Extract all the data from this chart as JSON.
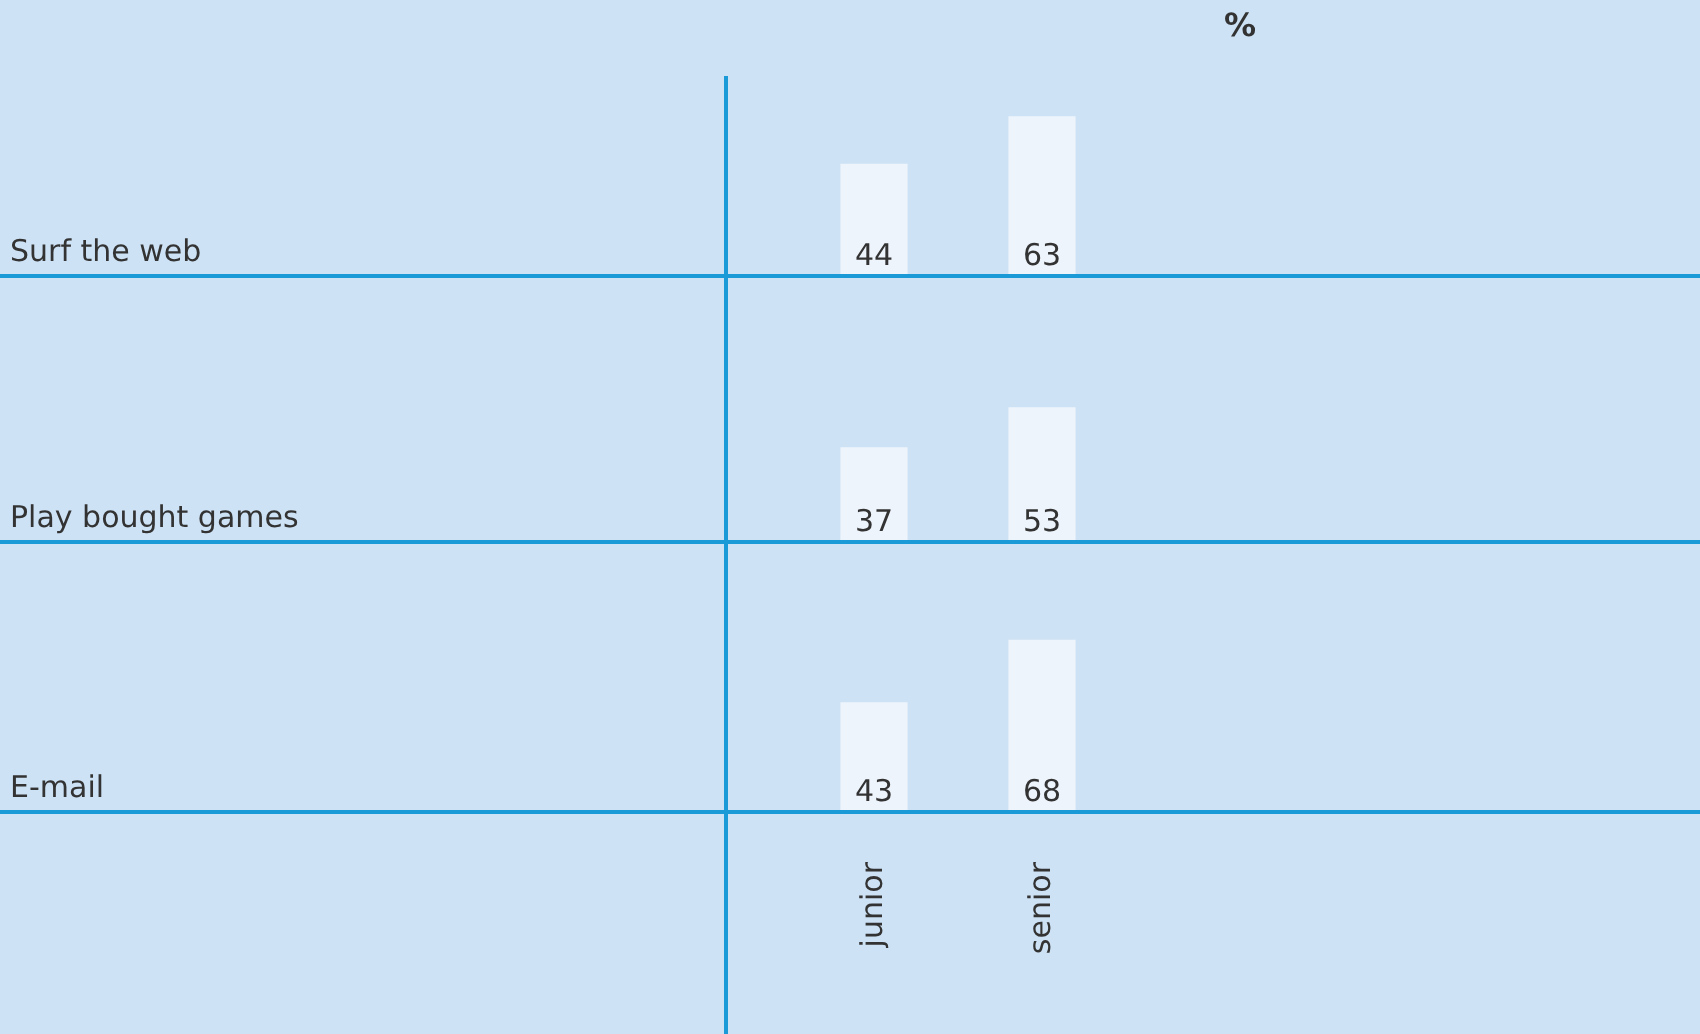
{
  "chart_data": [
    {
      "type": "bar",
      "annotations": [
        "%"
      ],
      "ylabel": "Surf the web",
      "categories": [
        null,
        null
      ],
      "values": [
        44,
        63
      ],
      "color": "#eef4fc",
      "data_labels": true
    },
    {
      "type": "bar",
      "ylabel": "Play bought games",
      "categories": [
        null,
        null
      ],
      "values": [
        37,
        53
      ],
      "color": "#eef4fc",
      "data_labels": true
    },
    {
      "type": "bar",
      "ylabel": "E-mail",
      "categories": [
        "junior",
        "senior"
      ],
      "values": [
        43,
        68
      ],
      "color": "#eef4fc",
      "data_labels": true
    }
  ]
}
